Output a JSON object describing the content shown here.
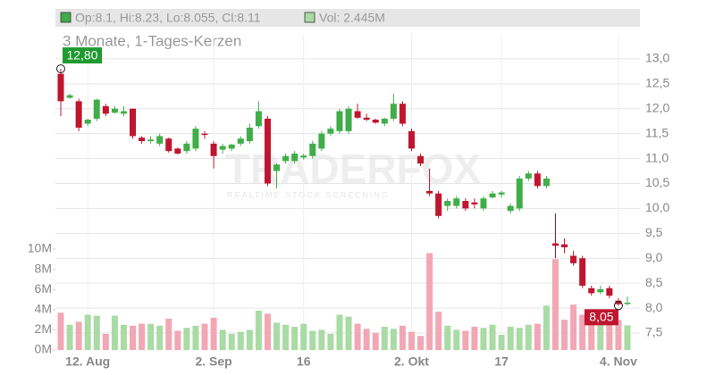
{
  "chart_data": {
    "type": "candlestick",
    "header": {
      "ohlc": "Op:8.1, Hi:8.23, Lo:8.055, Cl:8.11",
      "volume": "Vol: 2.445M"
    },
    "title": "3 Monate, 1-Tages-Kerzen",
    "watermark": {
      "brand": "TRADERFOX",
      "tagline": "REALTIME STOCK SCREENING"
    },
    "categories": [
      null,
      null,
      null,
      "12. Aug",
      null,
      null,
      null,
      null,
      null,
      null,
      null,
      null,
      null,
      null,
      null,
      null,
      null,
      "2. Sep",
      null,
      null,
      null,
      null,
      null,
      null,
      null,
      null,
      null,
      "16",
      null,
      null,
      null,
      null,
      null,
      null,
      null,
      null,
      null,
      null,
      null,
      "2. Okt",
      null,
      null,
      null,
      null,
      null,
      null,
      null,
      null,
      null,
      "17",
      null,
      null,
      null,
      null,
      null,
      null,
      null,
      null,
      null,
      null,
      null,
      null,
      "4. Nov",
      null
    ],
    "open": [
      12.7,
      12.22,
      12.15,
      11.7,
      11.8,
      12.05,
      11.92,
      11.9,
      12.0,
      11.42,
      11.35,
      11.3,
      11.4,
      11.2,
      11.15,
      11.2,
      11.5,
      11.3,
      11.18,
      11.2,
      11.3,
      11.35,
      11.65,
      11.8,
      10.75,
      10.95,
      10.95,
      11.02,
      11.05,
      11.2,
      11.5,
      11.55,
      11.55,
      11.95,
      11.82,
      11.78,
      11.7,
      11.8,
      12.1,
      11.55,
      11.05,
      10.35,
      10.3,
      10.05,
      10.05,
      10.15,
      10.12,
      10.0,
      10.22,
      10.28,
      9.95,
      10.0,
      10.6,
      10.7,
      10.45,
      9.3,
      9.28,
      9.05,
      9.0,
      8.4,
      8.32,
      8.4,
      8.15,
      8.1
    ],
    "high": [
      12.8,
      12.3,
      12.2,
      11.8,
      12.2,
      12.1,
      12.05,
      12.05,
      12.0,
      11.45,
      11.45,
      11.5,
      11.42,
      11.22,
      11.35,
      11.65,
      11.55,
      11.35,
      11.3,
      11.3,
      11.45,
      11.7,
      12.15,
      11.85,
      10.9,
      11.1,
      11.15,
      11.1,
      11.35,
      11.55,
      11.65,
      12.0,
      12.05,
      12.1,
      11.9,
      11.8,
      11.82,
      12.3,
      12.15,
      11.6,
      11.1,
      10.8,
      10.35,
      10.2,
      10.25,
      10.2,
      10.2,
      10.25,
      10.35,
      10.35,
      10.1,
      10.65,
      10.75,
      10.75,
      10.65,
      9.9,
      9.4,
      9.15,
      9.05,
      8.45,
      8.45,
      8.45,
      8.2,
      8.23
    ],
    "low": [
      11.85,
      12.2,
      11.55,
      11.65,
      11.75,
      11.85,
      11.9,
      11.85,
      11.4,
      11.3,
      11.3,
      11.25,
      11.12,
      11.08,
      11.1,
      11.15,
      11.4,
      10.8,
      11.1,
      11.15,
      11.25,
      11.3,
      11.6,
      10.45,
      10.4,
      10.9,
      10.9,
      10.98,
      11.0,
      11.15,
      11.45,
      11.5,
      11.5,
      11.8,
      11.75,
      11.7,
      11.65,
      11.75,
      11.65,
      11.15,
      10.85,
      10.25,
      9.8,
      9.95,
      10.0,
      9.95,
      10.0,
      9.95,
      10.2,
      10.22,
      9.9,
      9.95,
      10.55,
      10.4,
      10.4,
      9.0,
      9.1,
      8.85,
      8.4,
      8.25,
      8.28,
      8.2,
      8.05,
      8.055
    ],
    "close": [
      12.15,
      12.27,
      11.62,
      11.78,
      12.18,
      11.9,
      12.0,
      11.95,
      11.45,
      11.35,
      11.38,
      11.45,
      11.15,
      11.1,
      11.3,
      11.6,
      11.48,
      11.05,
      11.25,
      11.28,
      11.4,
      11.62,
      11.95,
      10.5,
      10.88,
      11.05,
      11.1,
      11.06,
      11.3,
      11.5,
      11.6,
      11.95,
      12.0,
      11.82,
      11.78,
      11.72,
      11.8,
      12.1,
      11.7,
      11.2,
      10.9,
      10.3,
      9.85,
      10.15,
      10.2,
      10.0,
      10.08,
      10.2,
      10.3,
      10.32,
      10.05,
      10.6,
      10.7,
      10.45,
      10.6,
      9.25,
      9.22,
      8.9,
      8.45,
      8.3,
      8.38,
      8.25,
      8.08,
      8.11
    ],
    "volume": [
      3.7,
      2.5,
      2.8,
      3.5,
      3.4,
      1.6,
      3.4,
      2.5,
      2.4,
      2.6,
      2.6,
      2.4,
      3.1,
      1.9,
      2.2,
      2.4,
      2.6,
      3.2,
      2.0,
      1.6,
      1.8,
      2.0,
      3.9,
      3.6,
      2.7,
      2.5,
      2.3,
      2.6,
      1.9,
      2.0,
      1.6,
      3.5,
      3.3,
      2.6,
      2.1,
      1.7,
      2.3,
      2.1,
      2.4,
      1.8,
      1.4,
      9.6,
      3.8,
      2.4,
      2.0,
      1.9,
      2.3,
      2.2,
      2.5,
      1.5,
      2.3,
      2.2,
      2.5,
      2.6,
      4.4,
      9.0,
      3.0,
      4.5,
      3.5,
      3.7,
      2.6,
      3.8,
      3.0,
      2.445
    ],
    "up_color": "#3fae49",
    "down_color": "#c0152f",
    "volume_up_color": "#a9dba4",
    "volume_down_color": "#f2a7b5",
    "ylim": [
      7.16,
      13.5
    ],
    "yticks": [
      {
        "value": 7.5,
        "label": "7,5"
      },
      {
        "value": 8,
        "label": "8,0"
      },
      {
        "value": 8.5,
        "label": "8,5"
      },
      {
        "value": 9,
        "label": "9,0"
      },
      {
        "value": 9.5,
        "label": "9,5"
      },
      {
        "value": 10,
        "label": "10,0"
      },
      {
        "value": 10.5,
        "label": "10,5"
      },
      {
        "value": 11,
        "label": "11,0"
      },
      {
        "value": 11.5,
        "label": "11,5"
      },
      {
        "value": 12,
        "label": "12,0"
      },
      {
        "value": 12.5,
        "label": "12,5"
      },
      {
        "value": 13,
        "label": "13,0"
      }
    ],
    "vlim": [
      0,
      12
    ],
    "vticks": [
      {
        "value": 0,
        "label": "0M"
      },
      {
        "value": 2,
        "label": "2M"
      },
      {
        "value": 4,
        "label": "4M"
      },
      {
        "value": 6,
        "label": "6M"
      },
      {
        "value": 8,
        "label": "8M"
      },
      {
        "value": 10,
        "label": "10M"
      }
    ],
    "grid": true,
    "annotations": [
      {
        "text": "12,80",
        "value": 12.8,
        "index": 0,
        "color": "#1e9a2e"
      },
      {
        "text": "8,05",
        "value": 8.05,
        "index": 62,
        "color": "#c0152f"
      }
    ]
  }
}
